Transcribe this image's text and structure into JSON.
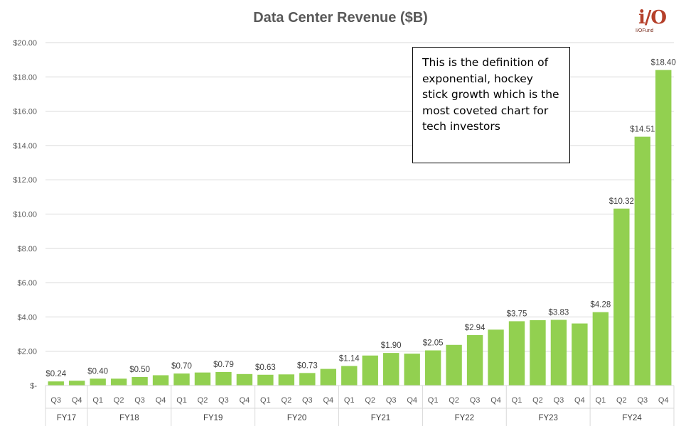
{
  "chart_data": {
    "type": "bar",
    "title": "Data Center Revenue ($B)",
    "xlabel": "",
    "ylabel": "",
    "ylim": [
      0,
      20
    ],
    "yticks": [
      0,
      2,
      4,
      6,
      8,
      10,
      12,
      14,
      16,
      18,
      20
    ],
    "ytick_labels": [
      "$-",
      "$2.00",
      "$4.00",
      "$6.00",
      "$8.00",
      "$10.00",
      "$12.00",
      "$14.00",
      "$16.00",
      "$18.00",
      "$20.00"
    ],
    "bar_color": "#92d050",
    "grid": true,
    "categories": [
      "Q3",
      "Q4",
      "Q1",
      "Q2",
      "Q3",
      "Q4",
      "Q1",
      "Q2",
      "Q3",
      "Q4",
      "Q1",
      "Q2",
      "Q3",
      "Q4",
      "Q1",
      "Q2",
      "Q3",
      "Q4",
      "Q1",
      "Q2",
      "Q3",
      "Q4",
      "Q1",
      "Q2",
      "Q3",
      "Q4",
      "Q1",
      "Q2",
      "Q3",
      "Q4"
    ],
    "values": [
      0.24,
      0.28,
      0.4,
      0.4,
      0.5,
      0.6,
      0.7,
      0.76,
      0.79,
      0.67,
      0.63,
      0.65,
      0.73,
      0.97,
      1.14,
      1.75,
      1.9,
      1.86,
      2.05,
      2.37,
      2.94,
      3.26,
      3.75,
      3.81,
      3.83,
      3.62,
      4.28,
      10.32,
      14.51,
      18.4
    ],
    "data_labels": [
      "$0.24",
      "",
      "$0.40",
      "",
      "$0.50",
      "",
      "$0.70",
      "",
      "$0.79",
      "",
      "$0.63",
      "",
      "$0.73",
      "",
      "$1.14",
      "",
      "$1.90",
      "",
      "$2.05",
      "",
      "$2.94",
      "",
      "$3.75",
      "",
      "$3.83",
      "",
      "$4.28",
      "$10.32",
      "$14.51",
      "$18.40"
    ],
    "groups": [
      {
        "label": "FY17",
        "count": 2
      },
      {
        "label": "FY18",
        "count": 4
      },
      {
        "label": "FY19",
        "count": 4
      },
      {
        "label": "FY20",
        "count": 4
      },
      {
        "label": "FY21",
        "count": 4
      },
      {
        "label": "FY22",
        "count": 4
      },
      {
        "label": "FY23",
        "count": 4
      },
      {
        "label": "FY24",
        "count": 4
      }
    ],
    "annotation": "This is the definition of exponential, hockey stick growth which is the most coveted chart for tech investors"
  },
  "logo": {
    "mark": "i/O",
    "text": "I/OFund"
  }
}
